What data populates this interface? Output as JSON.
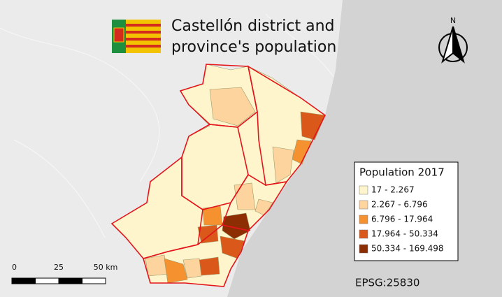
{
  "title_lines": [
    "Castellón district and",
    "province's population"
  ],
  "north_label": "N",
  "legend": {
    "title": "Population 2017",
    "classes": [
      {
        "label": "17 - 2.267",
        "color": "#fff5cc"
      },
      {
        "label": "2.267 - 6.796",
        "color": "#fdd49e"
      },
      {
        "label": "6.796 - 17.964",
        "color": "#f5922f"
      },
      {
        "label": "17.964 - 50.334",
        "color": "#d9581a"
      },
      {
        "label": "50.334 - 169.498",
        "color": "#8c2d04"
      }
    ]
  },
  "scale_bar": {
    "labels": [
      "0",
      "25",
      "50 km"
    ]
  },
  "crs": "EPSG:25830"
}
